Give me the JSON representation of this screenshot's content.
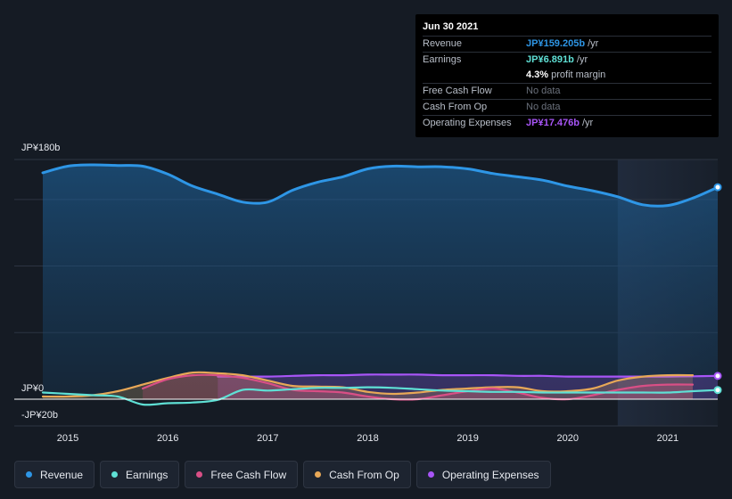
{
  "tooltip": {
    "date": "Jun 30 2021",
    "rows": [
      {
        "label": "Revenue",
        "value": "JP¥159.205b",
        "unit": " /yr",
        "color": "#2e96e6"
      },
      {
        "label": "Earnings",
        "value": "JP¥6.891b",
        "unit": " /yr",
        "color": "#5fe0d5"
      },
      {
        "label": "",
        "value": "4.3%",
        "unit": " profit margin",
        "color": "#ffffff"
      },
      {
        "label": "Free Cash Flow",
        "value": "No data",
        "unit": "",
        "color": "#6b717c"
      },
      {
        "label": "Cash From Op",
        "value": "No data",
        "unit": "",
        "color": "#6b717c"
      },
      {
        "label": "Operating Expenses",
        "value": "JP¥17.476b",
        "unit": " /yr",
        "color": "#a855f7"
      }
    ]
  },
  "chart_data": {
    "type": "line",
    "ylim": [
      -20,
      180
    ],
    "y_tick_labels": {
      "top": "JP¥180b",
      "zero": "JP¥0",
      "bottom": "-JP¥20b"
    },
    "x_ticks": [
      2015,
      2016,
      2017,
      2018,
      2019,
      2020,
      2021
    ],
    "xlim": [
      2014.75,
      2021.5
    ],
    "forecast_shade_start": 2020.5,
    "series": [
      {
        "name": "Revenue",
        "color": "#2e96e6",
        "area": true,
        "x": [
          2014.75,
          2015.0,
          2015.25,
          2015.5,
          2015.75,
          2016.0,
          2016.25,
          2016.5,
          2016.75,
          2017.0,
          2017.25,
          2017.5,
          2017.75,
          2018.0,
          2018.25,
          2018.5,
          2018.75,
          2019.0,
          2019.25,
          2019.5,
          2019.75,
          2020.0,
          2020.25,
          2020.5,
          2020.75,
          2021.0,
          2021.25,
          2021.5
        ],
        "y": [
          170,
          175,
          176,
          175.5,
          175,
          169,
          160,
          154,
          148,
          148,
          157,
          163,
          167,
          173,
          175,
          174.5,
          174.5,
          173,
          169.5,
          167,
          164.5,
          160,
          156.5,
          152,
          146,
          145.5,
          151,
          159.2
        ]
      },
      {
        "name": "Earnings",
        "color": "#5fe0d5",
        "area": false,
        "x": [
          2014.75,
          2015.0,
          2015.25,
          2015.5,
          2015.75,
          2016.0,
          2016.25,
          2016.5,
          2016.75,
          2017.0,
          2017.25,
          2017.5,
          2017.75,
          2018.0,
          2018.25,
          2018.5,
          2018.75,
          2019.0,
          2019.25,
          2019.5,
          2019.75,
          2020.0,
          2020.25,
          2020.5,
          2020.75,
          2021.0,
          2021.25,
          2021.5
        ],
        "y": [
          5,
          4,
          3,
          2,
          -4,
          -3,
          -2.5,
          -0.5,
          7,
          6.5,
          7.5,
          8.5,
          8.5,
          9,
          8.5,
          7.5,
          6.5,
          6,
          5.5,
          5.5,
          5,
          5,
          5,
          5,
          5,
          5,
          6,
          6.9
        ]
      },
      {
        "name": "Free Cash Flow",
        "color": "#d94f86",
        "area": true,
        "x": [
          2015.75,
          2016.0,
          2016.25,
          2016.5,
          2016.75,
          2017.0,
          2017.25,
          2017.5,
          2017.75,
          2018.0,
          2018.25,
          2018.5,
          2018.75,
          2019.0,
          2019.25,
          2019.5,
          2019.75,
          2020.0,
          2020.25,
          2020.5,
          2020.75,
          2021.0,
          2021.25
        ],
        "y": [
          8,
          15,
          18,
          18,
          16,
          12,
          7,
          6,
          5,
          2,
          0,
          0,
          3,
          6,
          8,
          5,
          1,
          0,
          3,
          7,
          10,
          11,
          11
        ]
      },
      {
        "name": "Cash From Op",
        "color": "#e8a857",
        "area": true,
        "x": [
          2014.75,
          2015.0,
          2015.25,
          2015.5,
          2015.75,
          2016.0,
          2016.25,
          2016.5,
          2016.75,
          2017.0,
          2017.25,
          2017.5,
          2017.75,
          2018.0,
          2018.25,
          2018.5,
          2018.75,
          2019.0,
          2019.25,
          2019.5,
          2019.75,
          2020.0,
          2020.25,
          2020.5,
          2020.75,
          2021.0,
          2021.25
        ],
        "y": [
          2,
          2,
          3,
          6,
          11,
          16,
          20,
          19.5,
          18,
          14,
          10,
          9.5,
          9,
          5.5,
          4,
          5,
          7,
          8,
          9,
          9,
          6,
          6,
          8,
          14,
          17,
          18,
          18
        ]
      },
      {
        "name": "Operating Expenses",
        "color": "#a855f7",
        "area": true,
        "x": [
          2016.5,
          2016.75,
          2017.0,
          2017.25,
          2017.5,
          2017.75,
          2018.0,
          2018.25,
          2018.5,
          2018.75,
          2019.0,
          2019.25,
          2019.5,
          2019.75,
          2020.0,
          2020.25,
          2020.5,
          2020.75,
          2021.0,
          2021.25,
          2021.5
        ],
        "y": [
          17,
          17,
          17,
          17.5,
          18,
          18,
          18.5,
          18.5,
          18.5,
          18,
          18,
          18,
          17.5,
          17.5,
          17,
          17,
          17,
          17,
          17,
          17.2,
          17.5
        ]
      }
    ]
  },
  "legend": {
    "items": [
      {
        "label": "Revenue",
        "color": "#2e96e6"
      },
      {
        "label": "Earnings",
        "color": "#5fe0d5"
      },
      {
        "label": "Free Cash Flow",
        "color": "#d94f86"
      },
      {
        "label": "Cash From Op",
        "color": "#e8a857"
      },
      {
        "label": "Operating Expenses",
        "color": "#a855f7"
      }
    ]
  }
}
